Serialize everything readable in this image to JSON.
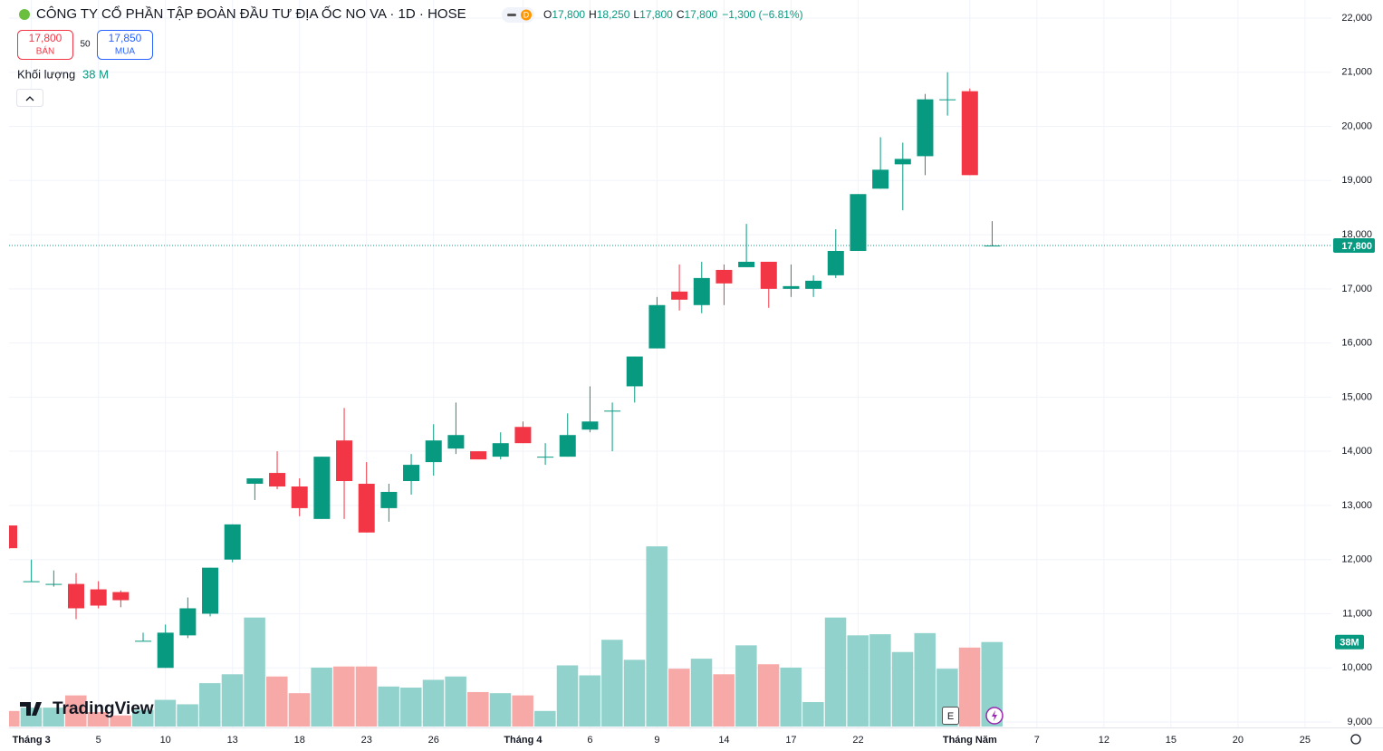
{
  "chart_data": {
    "type": "candlestick",
    "title": "CÔNG TY CỔ PHẦN TẬP ĐOÀN ĐẦU TƯ ĐỊA ỐC NO VA · 1D · HOSE",
    "interval_badge": "D",
    "legend": [
      {
        "key": "O",
        "value": "17,800"
      },
      {
        "key": "H",
        "value": "18,250"
      },
      {
        "key": "L",
        "value": "17,800"
      },
      {
        "key": "C",
        "value": "17,800"
      }
    ],
    "change": "−1,300 (−6.81%)",
    "sell_price": "17,800",
    "sell_label": "BÁN",
    "spread": "50",
    "buy_price": "17,850",
    "buy_label": "MUA",
    "volume_title": "Khối lượng",
    "volume_value": "38 M",
    "brand": "TradingView",
    "event_marker": "E",
    "categories": [
      null,
      "Tháng 3",
      null,
      null,
      "5",
      null,
      null,
      "10",
      null,
      null,
      "13",
      null,
      null,
      "18",
      null,
      null,
      "23",
      null,
      null,
      "26",
      null,
      null,
      null,
      "Tháng 4",
      null,
      null,
      "6",
      null,
      null,
      "9",
      null,
      null,
      "14",
      null,
      null,
      "17",
      null,
      null,
      "22",
      null,
      null,
      null,
      null,
      "Tháng Năm",
      null
    ],
    "future_ticks": [
      "7",
      "12",
      "15",
      "20",
      "25"
    ],
    "open": [
      12630,
      11600,
      11550,
      11550,
      11450,
      11400,
      10500,
      10000,
      10600,
      11000,
      12000,
      13400,
      13600,
      13350,
      12750,
      14200,
      13400,
      12950,
      13450,
      13800,
      14050,
      14000,
      13900,
      14450,
      13900,
      13900,
      14400,
      14750,
      15200,
      15900,
      16950,
      16700,
      17350,
      17400,
      17500,
      17000,
      17000,
      17250,
      17700,
      18850,
      19300,
      19450,
      20500,
      20650,
      17800
    ],
    "high": [
      12630,
      12000,
      11800,
      11750,
      11600,
      11430,
      10650,
      10800,
      11300,
      11850,
      12650,
      13500,
      14000,
      13500,
      13900,
      14800,
      13800,
      13400,
      13950,
      14500,
      14900,
      14000,
      14350,
      14550,
      14150,
      14700,
      15200,
      14900,
      15750,
      16850,
      17450,
      17500,
      17450,
      18200,
      17500,
      17450,
      17250,
      18100,
      18750,
      19800,
      19700,
      20600,
      21000,
      20700,
      18250
    ],
    "low": [
      12200,
      11600,
      11500,
      10900,
      11100,
      11120,
      10500,
      10000,
      10550,
      10950,
      11950,
      13100,
      13300,
      12800,
      12750,
      12750,
      12500,
      12700,
      13200,
      13550,
      13950,
      13850,
      13850,
      14150,
      13750,
      13900,
      14350,
      14000,
      14900,
      15900,
      16600,
      16550,
      16700,
      17400,
      16650,
      16850,
      16850,
      17200,
      17700,
      18850,
      18450,
      19100,
      20200,
      19100,
      17800
    ],
    "close": [
      12210,
      11600,
      11550,
      11100,
      11150,
      11250,
      10500,
      10650,
      11100,
      11850,
      12650,
      13500,
      13350,
      12950,
      13900,
      13450,
      12500,
      13250,
      13750,
      14200,
      14300,
      13850,
      14150,
      14150,
      13900,
      14300,
      14550,
      14750,
      15750,
      16700,
      16800,
      17200,
      17100,
      17500,
      17000,
      17050,
      17150,
      17700,
      18750,
      19200,
      19400,
      20500,
      20500,
      19100,
      17800
    ],
    "volume": [
      7,
      8.5,
      8.5,
      14,
      6.5,
      5,
      7.5,
      12,
      10,
      19.5,
      23.5,
      49,
      22.5,
      15,
      26.5,
      27,
      27,
      18,
      17.5,
      21,
      22.5,
      15.5,
      15,
      14,
      7,
      27.5,
      23,
      39,
      30,
      81,
      26,
      30.5,
      23.5,
      36.5,
      28,
      26.5,
      11,
      49,
      41,
      41.5,
      33.5,
      42,
      26,
      35.5,
      38
    ],
    "volume_lim": [
      0,
      90
    ],
    "last_volume": {
      "value": 38,
      "label": "38M"
    },
    "last_price": {
      "value": 17800,
      "label": "17,800"
    },
    "ylim": [
      9000,
      22000
    ],
    "yticks": [
      {
        "value": 9000,
        "label": "9,000"
      },
      {
        "value": 10000,
        "label": "10,000"
      },
      {
        "value": 11000,
        "label": "11,000"
      },
      {
        "value": 12000,
        "label": "12,000"
      },
      {
        "value": 13000,
        "label": "13,000"
      },
      {
        "value": 14000,
        "label": "14,000"
      },
      {
        "value": 15000,
        "label": "15,000"
      },
      {
        "value": 16000,
        "label": "16,000"
      },
      {
        "value": 17000,
        "label": "17,000"
      },
      {
        "value": 18000,
        "label": "18,000"
      },
      {
        "value": 19000,
        "label": "19,000"
      },
      {
        "value": 20000,
        "label": "20,000"
      },
      {
        "value": 21000,
        "label": "21,000"
      },
      {
        "value": 22000,
        "label": "22,000"
      }
    ],
    "grid": true,
    "up_color": "#089981",
    "down_color": "#f23645",
    "volume_up_color": "#92d2cc",
    "volume_down_color": "#f7a9a7"
  }
}
